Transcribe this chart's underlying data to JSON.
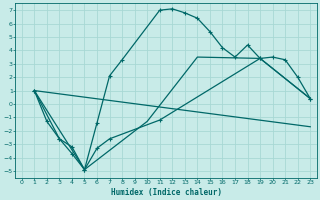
{
  "xlabel": "Humidex (Indice chaleur)",
  "bg_color": "#c8ebe8",
  "line_color": "#006868",
  "grid_color": "#a8d8d4",
  "xlim": [
    -0.5,
    23.5
  ],
  "ylim": [
    -5.5,
    7.5
  ],
  "xticks": [
    0,
    1,
    2,
    3,
    4,
    5,
    6,
    7,
    8,
    9,
    10,
    11,
    12,
    13,
    14,
    15,
    16,
    17,
    18,
    19,
    20,
    21,
    22,
    23
  ],
  "yticks": [
    -5,
    -4,
    -3,
    -2,
    -1,
    0,
    1,
    2,
    3,
    4,
    5,
    6,
    7
  ],
  "line1_x": [
    1,
    2,
    3,
    4,
    5,
    6,
    7,
    8,
    11,
    12,
    13,
    14,
    15,
    16,
    17,
    18,
    19,
    20,
    21,
    22,
    23
  ],
  "line1_y": [
    1,
    -1.3,
    -2.6,
    -3.7,
    -4.9,
    -1.4,
    2.1,
    3.3,
    7.0,
    7.1,
    6.8,
    6.4,
    5.4,
    4.2,
    3.5,
    4.4,
    3.4,
    3.5,
    3.3,
    2.0,
    0.4
  ],
  "line2_x": [
    1,
    3,
    4,
    5,
    6,
    7,
    11,
    19,
    23
  ],
  "line2_y": [
    1,
    -2.6,
    -3.2,
    -4.9,
    -3.3,
    -2.6,
    -1.2,
    3.4,
    0.4
  ],
  "line3_x": [
    1,
    5,
    10,
    14,
    19,
    23
  ],
  "line3_y": [
    1,
    -4.9,
    -1.3,
    3.5,
    3.4,
    0.4
  ],
  "line4_x": [
    1,
    23
  ],
  "line4_y": [
    1,
    -1.7
  ]
}
